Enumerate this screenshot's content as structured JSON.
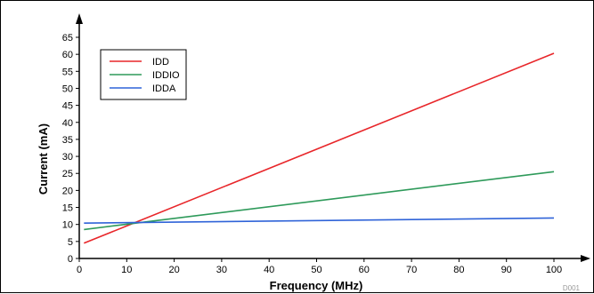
{
  "chart_data": {
    "type": "line",
    "xlabel": "Frequency (MHz)",
    "ylabel": "Current (mA)",
    "xlim": [
      0,
      100
    ],
    "ylim": [
      0,
      65
    ],
    "xticks": [
      0,
      10,
      20,
      30,
      40,
      50,
      60,
      70,
      80,
      90,
      100
    ],
    "yticks": [
      0,
      5,
      10,
      15,
      20,
      25,
      30,
      35,
      40,
      45,
      50,
      55,
      60,
      65
    ],
    "grid": false,
    "legend_position": "top-left",
    "series": [
      {
        "name": "IDD",
        "color": "#e8262a",
        "x": [
          1,
          100
        ],
        "y": [
          4.5,
          60.3
        ]
      },
      {
        "name": "IDDIO",
        "color": "#2e9a5a",
        "x": [
          1,
          100
        ],
        "y": [
          8.5,
          25.5
        ]
      },
      {
        "name": "IDDA",
        "color": "#2f63d8",
        "x": [
          1,
          100
        ],
        "y": [
          10.4,
          11.9
        ]
      }
    ],
    "figure_code": "D001"
  }
}
